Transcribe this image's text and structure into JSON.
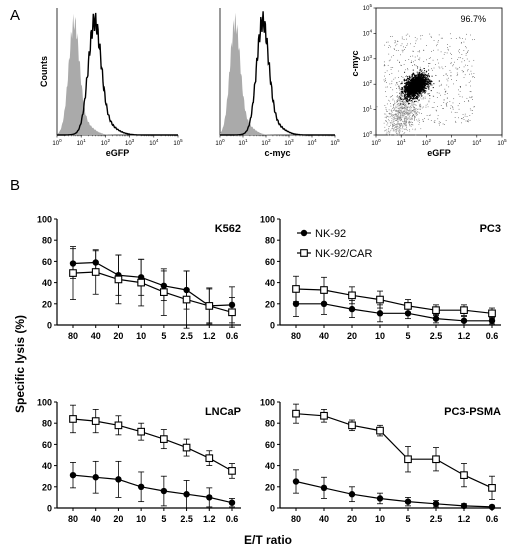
{
  "figure": {
    "panel_a_label": "A",
    "panel_b_label": "B"
  },
  "colors": {
    "filled_histogram": "#aaaaaa",
    "line": "#000000",
    "scatter_dense": "#000000",
    "scatter_grey": "#9a9a9a"
  },
  "chart_data": [
    {
      "type": "area",
      "panel": "A1",
      "xlabel": "eGFP",
      "ylabel": "Counts",
      "xscale": "log",
      "xlim": [
        1,
        100000
      ],
      "x_ticks": [
        "10",
        "1",
        "2",
        "3",
        "4",
        "5"
      ],
      "series": [
        {
          "style": "filled-grey",
          "peak_log10": 0.7,
          "width": 0.22
        },
        {
          "style": "outline-black",
          "peak_log10": 1.55,
          "width": 0.26
        }
      ]
    },
    {
      "type": "area",
      "panel": "A2",
      "xlabel": "c-myc",
      "xscale": "log",
      "xlim": [
        1,
        100000
      ],
      "x_ticks": [
        "10",
        "1",
        "2",
        "3",
        "4",
        "5"
      ],
      "series": [
        {
          "style": "filled-grey",
          "peak_log10": 0.65,
          "width": 0.22
        },
        {
          "style": "outline-black",
          "peak_log10": 1.85,
          "width": 0.26
        }
      ]
    },
    {
      "type": "scatter",
      "panel": "A3",
      "xlabel": "eGFP",
      "ylabel": "c-myc",
      "xscale": "log",
      "yscale": "log",
      "xlim": [
        1,
        100000
      ],
      "ylim": [
        1,
        100000
      ],
      "x_ticks": [
        "10",
        "1",
        "2",
        "3",
        "4",
        "5"
      ],
      "y_ticks": [
        "10",
        "1",
        "2",
        "3",
        "4",
        "5"
      ],
      "annotation": "96.7%",
      "populations": [
        {
          "style": "dense-black",
          "center_log10": [
            1.55,
            1.95
          ]
        },
        {
          "style": "grey",
          "center_log10": [
            0.9,
            0.7
          ]
        }
      ]
    },
    {
      "type": "line",
      "panel": "B1",
      "title": "K562",
      "ylabel": "Specific lysis (%)",
      "categories": [
        "80",
        "40",
        "20",
        "10",
        "5",
        "2.5",
        "1.2",
        "0.6"
      ],
      "ylim": [
        0,
        100
      ],
      "y_ticks": [
        "0",
        "20",
        "40",
        "60",
        "80",
        "100"
      ],
      "series": [
        {
          "name": "NK-92",
          "marker": "filled-circle",
          "values": [
            58,
            59,
            47,
            45,
            37,
            33,
            18,
            19
          ],
          "errors": [
            14,
            11,
            19,
            17,
            14,
            18,
            17,
            17
          ]
        },
        {
          "name": "NK-92/CAR",
          "marker": "open-square",
          "values": [
            49,
            50,
            43,
            40,
            31,
            24,
            18,
            12
          ],
          "errors": [
            25,
            21,
            23,
            22,
            22,
            27,
            16,
            14
          ]
        }
      ]
    },
    {
      "type": "line",
      "panel": "B2",
      "title": "PC3",
      "categories": [
        "80",
        "40",
        "20",
        "10",
        "5",
        "2.5",
        "1.2",
        "0.6"
      ],
      "ylim": [
        0,
        100
      ],
      "y_ticks": [
        "0",
        "20",
        "40",
        "60",
        "80",
        "100"
      ],
      "legend_position": "top-left",
      "series": [
        {
          "name": "NK-92",
          "marker": "filled-circle",
          "values": [
            20,
            20,
            15,
            11,
            11,
            6,
            4,
            4
          ],
          "errors": [
            12,
            10,
            8,
            8,
            5,
            4,
            4,
            3
          ]
        },
        {
          "name": "NK-92/CAR",
          "marker": "open-square",
          "values": [
            34,
            33,
            28,
            24,
            18,
            14,
            14,
            11
          ],
          "errors": [
            12,
            12,
            8,
            8,
            6,
            5,
            5,
            5
          ]
        }
      ]
    },
    {
      "type": "line",
      "panel": "B3",
      "title": "LNCaP",
      "categories": [
        "80",
        "40",
        "20",
        "10",
        "5",
        "2.5",
        "1.2",
        "0.6"
      ],
      "ylim": [
        0,
        100
      ],
      "y_ticks": [
        "0",
        "20",
        "40",
        "60",
        "80",
        "100"
      ],
      "series": [
        {
          "name": "NK-92",
          "marker": "filled-circle",
          "values": [
            31,
            29,
            27,
            20,
            16,
            13,
            10,
            5
          ],
          "errors": [
            12,
            15,
            17,
            14,
            14,
            13,
            9,
            4
          ]
        },
        {
          "name": "NK-92/CAR",
          "marker": "open-square",
          "values": [
            84,
            82,
            78,
            72,
            65,
            57,
            47,
            35
          ],
          "errors": [
            13,
            11,
            9,
            8,
            9,
            8,
            7,
            7
          ]
        }
      ]
    },
    {
      "type": "line",
      "panel": "B4",
      "title": "PC3-PSMA",
      "xlabel": "E/T ratio",
      "categories": [
        "80",
        "40",
        "20",
        "10",
        "5",
        "2.5",
        "1.2",
        "0.6"
      ],
      "ylim": [
        0,
        100
      ],
      "y_ticks": [
        "0",
        "20",
        "40",
        "60",
        "80",
        "100"
      ],
      "series": [
        {
          "name": "NK-92",
          "marker": "filled-circle",
          "values": [
            25,
            19,
            13,
            9,
            6,
            4,
            2,
            1
          ],
          "errors": [
            11,
            10,
            7,
            5,
            4,
            3,
            2,
            1
          ]
        },
        {
          "name": "NK-92/CAR",
          "marker": "open-square",
          "values": [
            89,
            87,
            78,
            73,
            46,
            46,
            31,
            19
          ],
          "errors": [
            9,
            6,
            5,
            5,
            12,
            11,
            11,
            11
          ]
        }
      ]
    }
  ]
}
